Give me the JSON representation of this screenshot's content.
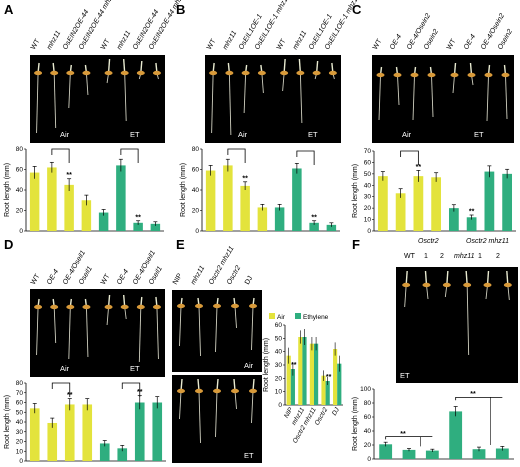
{
  "colors": {
    "air": "#e3e33c",
    "et": "#2fae7f",
    "photo_bg": "#000000",
    "seed": "#d89a3a",
    "root": "#cfcfbf",
    "shoot": "#e8ead0"
  },
  "panels": {
    "A": {
      "label": "A",
      "lanes": [
        "WT",
        "mhz11",
        "OsEIN2OE-44",
        "OsEIN2OE-44",
        "WT",
        "mhz11",
        "OsEIN2OE-44",
        "OsEIN2OE-44"
      ],
      "lane_sub": [
        "",
        "",
        "",
        "mhz11",
        "",
        "",
        "",
        "mhz11"
      ],
      "group_air": "Air",
      "group_et": "ET"
    },
    "B": {
      "label": "B",
      "lanes": [
        "WT",
        "mhz11",
        "OsEIL1OE-1",
        "OsEIL1OE-1",
        "WT",
        "mhz11",
        "OsEIL1OE-1",
        "OsEIL1OE-1"
      ],
      "lane_sub": [
        "",
        "",
        "",
        "mhz11",
        "",
        "",
        "",
        "mhz11"
      ],
      "group_air": "Air",
      "group_et": "ET"
    },
    "C": {
      "label": "C",
      "lanes": [
        "WT",
        "OE-4",
        "OE-4/Osein2",
        "Osein2",
        "WT",
        "OE-4",
        "OE-4/Osein2",
        "Osein2"
      ],
      "group_air": "Air",
      "group_et": "ET"
    },
    "D": {
      "label": "D",
      "lanes": [
        "WT",
        "OE-4",
        "OE-4/Oseil1",
        "Oseil1",
        "WT",
        "OE-4",
        "OE-4/Oseil1",
        "Oseil1"
      ],
      "group_air": "Air",
      "group_et": "ET"
    },
    "E": {
      "label": "E",
      "lanes": [
        "NIP",
        "mhz11",
        "Osctr2 mhz11",
        "Osctr2",
        "DJ"
      ],
      "photo_air": "Air",
      "photo_et": "ET"
    },
    "F": {
      "label": "F",
      "header_a": "Osctr2",
      "header_b": "Osctr2 mhz11",
      "lanes": [
        "WT",
        "1",
        "2",
        "mhz11",
        "1",
        "2"
      ],
      "photo_et": "ET"
    }
  },
  "chart_data": [
    {
      "panel": "A",
      "type": "bar",
      "ylabel": "Root length (mm)",
      "ylim": [
        0,
        80
      ],
      "yticks": [
        0,
        20,
        40,
        60,
        80
      ],
      "values": [
        57,
        62,
        45,
        30,
        18,
        64,
        8,
        7
      ],
      "errors": [
        6,
        5,
        6,
        5,
        3,
        6,
        2,
        2
      ],
      "colors": [
        "air",
        "air",
        "air",
        "air",
        "et",
        "et",
        "et",
        "et"
      ],
      "stars": [
        "",
        "",
        "**",
        "",
        "",
        "",
        "**",
        ""
      ]
    },
    {
      "panel": "B",
      "type": "bar",
      "ylabel": "Root length (mm)",
      "ylim": [
        0,
        80
      ],
      "yticks": [
        0,
        20,
        40,
        60,
        80
      ],
      "values": [
        59,
        64,
        44,
        23,
        23,
        61,
        8,
        6
      ],
      "errors": [
        5,
        6,
        4,
        3,
        3,
        5,
        2,
        2
      ],
      "colors": [
        "air",
        "air",
        "air",
        "air",
        "et",
        "et",
        "et",
        "et"
      ],
      "stars": [
        "",
        "",
        "**",
        "",
        "",
        "",
        "**",
        ""
      ]
    },
    {
      "panel": "C",
      "type": "bar",
      "ylabel": "Root length (mm)",
      "ylim": [
        0,
        70
      ],
      "yticks": [
        0,
        10,
        20,
        30,
        40,
        50,
        60,
        70
      ],
      "values": [
        48,
        33,
        48,
        47,
        20,
        12,
        52,
        50
      ],
      "errors": [
        4,
        4,
        5,
        4,
        3,
        2,
        5,
        4
      ],
      "colors": [
        "air",
        "air",
        "air",
        "air",
        "et",
        "et",
        "et",
        "et"
      ],
      "stars": [
        "",
        "",
        "**",
        "",
        "",
        "**",
        "",
        ""
      ]
    },
    {
      "panel": "D",
      "type": "bar",
      "ylabel": "Root length (mm)",
      "ylim": [
        0,
        80
      ],
      "yticks": [
        0,
        10,
        20,
        30,
        40,
        50,
        60,
        70,
        80
      ],
      "values": [
        54,
        39,
        58,
        58,
        18,
        13,
        60,
        60
      ],
      "errors": [
        5,
        5,
        6,
        6,
        3,
        3,
        7,
        6
      ],
      "colors": [
        "air",
        "air",
        "air",
        "air",
        "et",
        "et",
        "et",
        "et"
      ],
      "stars": [
        "",
        "",
        "**",
        "",
        "",
        "",
        "**",
        ""
      ]
    },
    {
      "panel": "E",
      "type": "bar",
      "ylabel": "Root length (mm)",
      "ylim": [
        0,
        60
      ],
      "yticks": [
        0,
        10,
        20,
        30,
        40,
        50,
        60
      ],
      "categories": [
        "NIP",
        "mhz11",
        "Osctr2 mhz11",
        "Osctr2",
        "DJ"
      ],
      "series": [
        {
          "name": "Air",
          "values": [
            37,
            51,
            46,
            22,
            42
          ],
          "errors": [
            6,
            5,
            5,
            4,
            5
          ]
        },
        {
          "name": "Ethylene",
          "values": [
            27,
            51,
            46,
            18,
            31
          ],
          "errors": [
            5,
            6,
            5,
            3,
            6
          ]
        }
      ],
      "stars_air": [
        "**",
        "",
        "",
        "**",
        ""
      ],
      "stars_et": [
        "",
        "",
        "",
        "",
        ""
      ]
    },
    {
      "panel": "F",
      "type": "bar",
      "ylabel": "Root length (mm)",
      "ylim": [
        0,
        100
      ],
      "yticks": [
        0,
        20,
        40,
        60,
        80,
        100
      ],
      "values": [
        21,
        13,
        12,
        68,
        14,
        15
      ],
      "errors": [
        3,
        2,
        2,
        7,
        3,
        3
      ],
      "colors": [
        "et",
        "et",
        "et",
        "et",
        "et",
        "et"
      ],
      "brackets": [
        "**",
        "**"
      ]
    }
  ]
}
